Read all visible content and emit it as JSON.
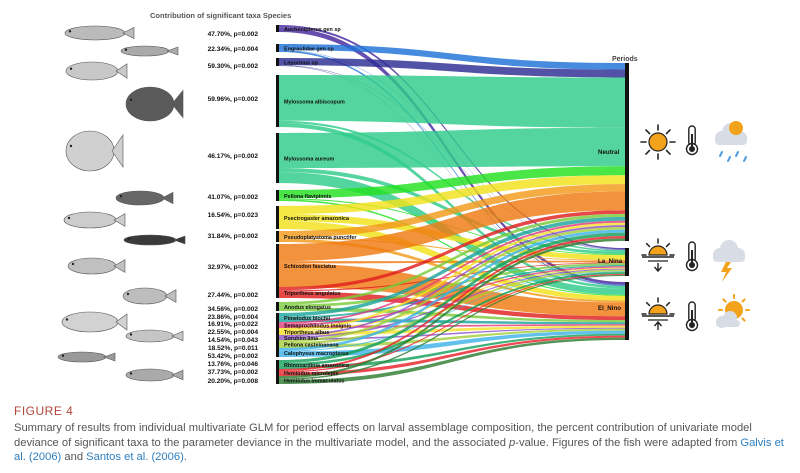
{
  "header": {
    "contribution_title": "Contribution of significant taxa Species",
    "periods_title": "Periods"
  },
  "colors": {
    "taxa": [
      "#5b3fa8",
      "#1e72d8",
      "#2c2c92",
      "#2ecc8a",
      "#2ecc8a",
      "#22e020",
      "#f2e21a",
      "#f29a1a",
      "#f07a12",
      "#e02020",
      "#7acb3a",
      "#1ea59e",
      "#e23b7a",
      "#f5e02a",
      "#8c52c8",
      "#a3ce3a",
      "#40b3e8",
      "#16a05a",
      "#e8222a",
      "#2e7d32",
      "#ff6f00",
      "#b0bec5",
      "#1e88e5"
    ],
    "period_bar": "#111111",
    "sun": "#f2a21b"
  },
  "taxa": [
    {
      "name": "Auchenipterus gen sp",
      "stat": "47.70%, p=0.002",
      "flows": [
        0,
        0.3,
        0.7
      ]
    },
    {
      "name": "Engraulidae gen sp",
      "stat": "22.34%, p=0.004",
      "flows": [
        0.75,
        0.05,
        0.2
      ]
    },
    {
      "name": "Leporinus sp.",
      "stat": "59.30%, p=0.002",
      "flows": [
        0.9,
        0.05,
        0.05
      ]
    },
    {
      "name": "Mylossoma albiscopum",
      "stat": "59.96%, p=0.002",
      "flows": [
        0.88,
        0.04,
        0.08
      ]
    },
    {
      "name": "Mylossoma aureum",
      "stat": "46.17%, p=0.002",
      "flows": [
        0.7,
        0.08,
        0.22
      ]
    },
    {
      "name": "Pellona flavipinnis",
      "stat": "41.07%, p=0.002",
      "flows": [
        0.75,
        0.1,
        0.15
      ]
    },
    {
      "name": "Psectrogaster amazonica",
      "stat": "16.54%, p=0.023",
      "flows": [
        0.35,
        0.3,
        0.35
      ]
    },
    {
      "name": "Pseudoplatystoma punctifer",
      "stat": "31.84%, p=0.002",
      "flows": [
        0.6,
        0.1,
        0.3
      ]
    },
    {
      "name": "Schizodon fasciatus",
      "stat": "32.97%, p=0.002",
      "flows": [
        0.4,
        0.05,
        0.55
      ]
    },
    {
      "name": "Triportheus angulatus",
      "stat": "27.44%, p=0.002",
      "flows": [
        0.3,
        0.1,
        0.6
      ]
    },
    {
      "name": "Anodus elongatus",
      "stat": "34.56%, p=0.002",
      "flows": [
        0.3,
        0.3,
        0.4
      ]
    },
    {
      "name": "Pimelodus blochii",
      "stat": "23.86%, p=0.004",
      "flows": [
        0.4,
        0.2,
        0.4
      ]
    },
    {
      "name": "Semaprochilodus insignis",
      "stat": "16.91%, p=0.022",
      "flows": [
        0.3,
        0.3,
        0.4
      ]
    },
    {
      "name": "Triportheus albus",
      "stat": "22.55%, p=0.004",
      "flows": [
        0.3,
        0.2,
        0.5
      ]
    },
    {
      "name": "Sorubim lima",
      "stat": "14.54%, p=0.043",
      "flows": [
        0.35,
        0.3,
        0.35
      ]
    },
    {
      "name": "Pellona castelnaeana",
      "stat": "18.52%, p=0.011",
      "flows": [
        0.3,
        0.3,
        0.4
      ]
    },
    {
      "name": "Calophysus macropterus",
      "stat": "53.42%, p=0.002",
      "flows": [
        0.3,
        0.1,
        0.6
      ]
    },
    {
      "name": "Rhinosardinia amazonica",
      "stat": "13.76%, p=0.046",
      "flows": [
        0.35,
        0.3,
        0.35
      ]
    },
    {
      "name": "Hemiodus microlepis",
      "stat": "37.73%, p=0.002",
      "flows": [
        0.3,
        0.2,
        0.5
      ]
    },
    {
      "name": "Hemiodus immaculatus",
      "stat": "20.20%, p=0.008",
      "flows": [
        0.3,
        0.2,
        0.5
      ]
    }
  ],
  "periods": [
    {
      "name": "Neutral",
      "icons": [
        "sun-icon",
        "thermometer-icon",
        "rain-cloud-icon"
      ]
    },
    {
      "name": "La_Nina",
      "icons": [
        "sunset-down-icon",
        "thermometer-icon",
        "storm-cloud-icon"
      ]
    },
    {
      "name": "El_Nino",
      "icons": [
        "sunrise-up-icon",
        "thermometer-icon",
        "partly-sunny-icon"
      ]
    }
  ],
  "caption": {
    "figure_label": "FIGURE 4",
    "text_before_p": "Summary of results from individual multivariate GLM for period effects on larval assemblage composition, the percent contribution of univariate model deviance of significant taxa to the parameter deviance in the multivariate model, and the associated ",
    "p_symbol": "p",
    "text_after_p": "-value. Figures of the fish were adapted from ",
    "ref1": "Galvis et al. (2006)",
    "and_text": " and ",
    "ref2": "Santos et al. (2006)",
    "end_text": "."
  }
}
